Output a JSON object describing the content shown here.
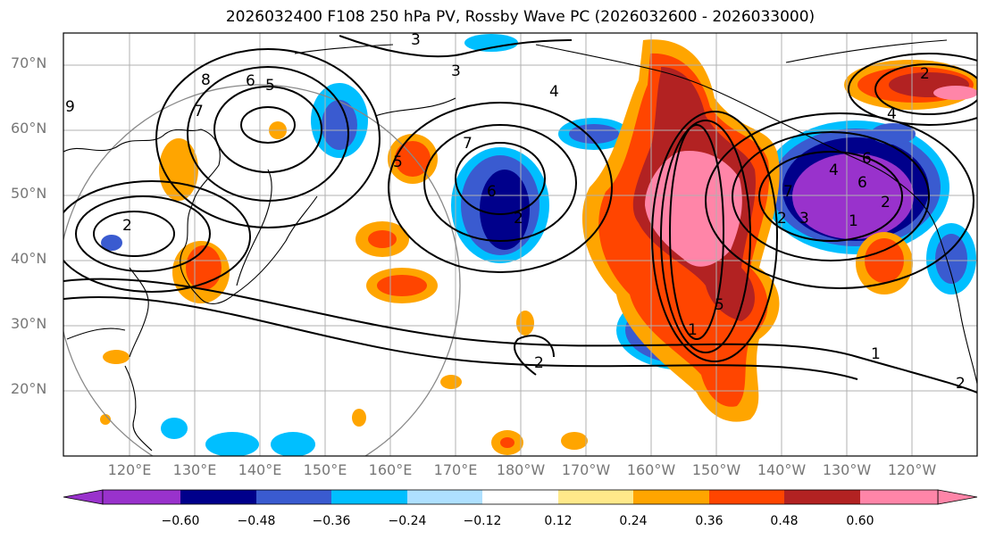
{
  "title": "2026032400 F108 250 hPa PV, Rossby Wave PC (2026032600 - 2026033000)",
  "lat_labels": [
    "70°N",
    "60°N",
    "50°N",
    "40°N",
    "30°N",
    "20°N"
  ],
  "lon_labels": [
    "120°E",
    "130°E",
    "140°E",
    "150°E",
    "160°E",
    "170°E",
    "180°W",
    "170°W",
    "160°W",
    "150°W",
    "140°W",
    "130°W",
    "120°W"
  ],
  "colorbar": {
    "ticks": [
      "−0.60",
      "−0.48",
      "−0.36",
      "−0.24",
      "−0.12",
      "0.12",
      "0.24",
      "0.36",
      "0.48",
      "0.60"
    ],
    "colors": [
      "#9932cc",
      "#00008b",
      "#3a5bd0",
      "#00bfff",
      "#aee0ff",
      "#ffffff",
      "#ffe98a",
      "#ffa500",
      "#ff4500",
      "#b22222",
      "#ff85a8"
    ]
  },
  "contour_labels": [
    "3",
    "8",
    "6",
    "5",
    "7",
    "9",
    "2",
    "7",
    "5",
    "6",
    "2",
    "4",
    "3",
    "1",
    "2",
    "7",
    "6",
    "6",
    "4",
    "2",
    "5",
    "1",
    "2",
    "2",
    "2",
    "4",
    "3",
    "1"
  ]
}
